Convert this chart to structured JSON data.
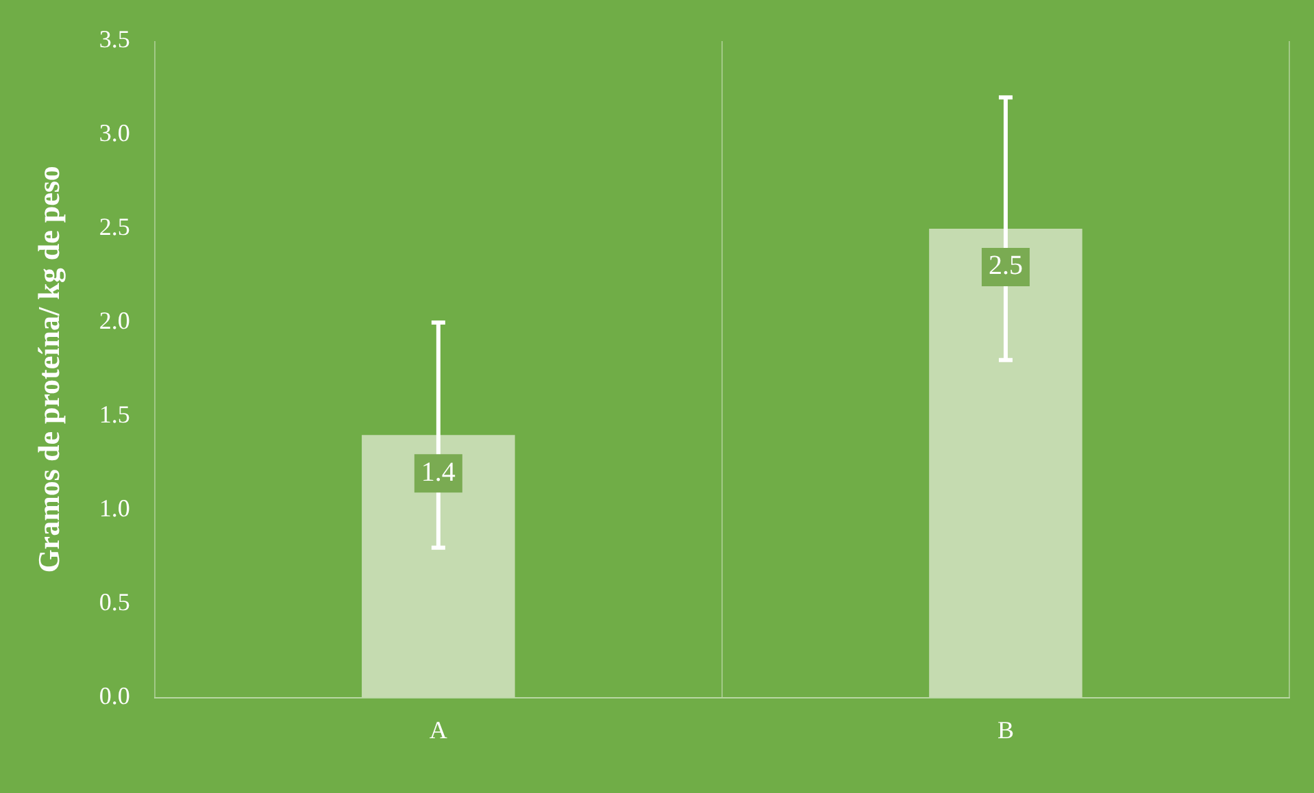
{
  "chart_data": {
    "type": "bar",
    "ylabel": "Gramos de proteína/ kg de peso",
    "categories": [
      "A",
      "B"
    ],
    "values": [
      1.4,
      2.5
    ],
    "errors": [
      0.6,
      0.7
    ],
    "color": "#c5dbb0",
    "data_labels": true,
    "ylim": [
      0,
      3.5
    ],
    "yticks": [
      {
        "value": 0,
        "label": "0.0"
      },
      {
        "value": 0.5,
        "label": "0.5"
      },
      {
        "value": 1,
        "label": "1.0"
      },
      {
        "value": 1.5,
        "label": "1.5"
      },
      {
        "value": 2,
        "label": "2.0"
      },
      {
        "value": 2.5,
        "label": "2.5"
      },
      {
        "value": 3,
        "label": "3.0"
      },
      {
        "value": 3.5,
        "label": "3.5"
      }
    ],
    "grid": "x",
    "legend": false
  }
}
